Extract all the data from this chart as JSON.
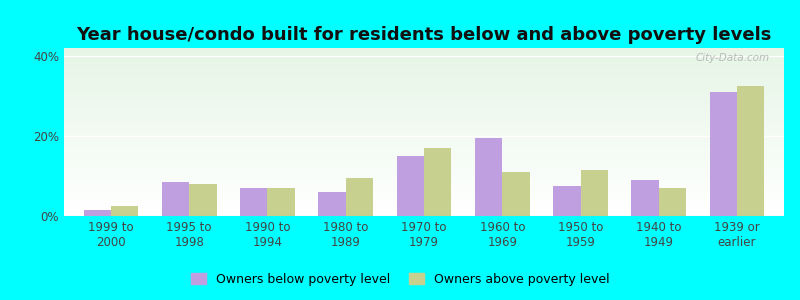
{
  "title": "Year house/condo built for residents below and above poverty levels",
  "categories": [
    "1999 to\n2000",
    "1995 to\n1998",
    "1990 to\n1994",
    "1980 to\n1989",
    "1970 to\n1979",
    "1960 to\n1969",
    "1950 to\n1959",
    "1940 to\n1949",
    "1939 or\nearlier"
  ],
  "below_poverty": [
    1.5,
    8.5,
    7.0,
    6.0,
    15.0,
    19.5,
    7.5,
    9.0,
    31.0
  ],
  "above_poverty": [
    2.5,
    8.0,
    7.0,
    9.5,
    17.0,
    11.0,
    11.5,
    7.0,
    32.5
  ],
  "below_color": "#bf9fdf",
  "above_color": "#c8d08f",
  "ylim": [
    0,
    42
  ],
  "yticks": [
    0,
    20,
    40
  ],
  "ytick_labels": [
    "0%",
    "20%",
    "40%"
  ],
  "background_outer": "#00ffff",
  "legend_below_label": "Owners below poverty level",
  "legend_above_label": "Owners above poverty level",
  "bar_width": 0.35,
  "title_fontsize": 13,
  "tick_fontsize": 8.5,
  "legend_fontsize": 9,
  "watermark": "City-Data.com"
}
